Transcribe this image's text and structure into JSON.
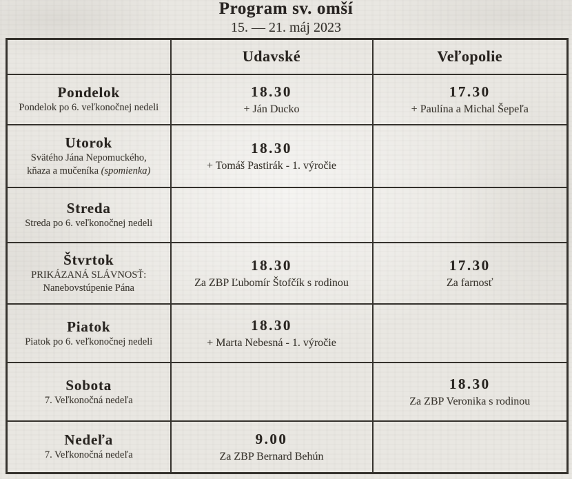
{
  "doc": {
    "title": "Program sv. omší",
    "subtitle": "15. — 21. máj 2023"
  },
  "table": {
    "col_udavske": "Udavské",
    "col_velopolie": "Veľopolie",
    "rows": [
      {
        "day": "Pondelok",
        "note1": "Pondelok po 6. veľkonočnej nedeli",
        "udavske": {
          "time": "18.30",
          "text": "+ Ján Ducko"
        },
        "velopolie": {
          "time": "17.30",
          "text": "+ Paulína a Michal Šepeľa"
        }
      },
      {
        "day": "Utorok",
        "note1": "Svätého Jána Nepomuckého,",
        "note2": "kňaza a mučeníka ",
        "note2_italic": "(spomienka)",
        "udavske": {
          "time": "18.30",
          "text": "+ Tomáš Pastirák - 1. výročie"
        }
      },
      {
        "day": "Streda",
        "note1": "Streda po 6. veľkonočnej nedeli"
      },
      {
        "day": "Štvrtok",
        "note1": "PRIKÁZANÁ SLÁVNOSŤ:",
        "note2": "Nanebovstúpenie Pána",
        "udavske": {
          "time": "18.30",
          "text": "Za ZBP Ľubomír Štofčík s rodinou"
        },
        "velopolie": {
          "time": "17.30",
          "text": "Za farnosť"
        }
      },
      {
        "day": "Piatok",
        "note1": "Piatok po 6. veľkonočnej nedeli",
        "udavske": {
          "time": "18.30",
          "text": "+ Marta Nebesná - 1. výročie"
        }
      },
      {
        "day": "Sobota",
        "note1": "7. Veľkonočná nedeľa",
        "velopolie": {
          "time": "18.30",
          "text": "Za ZBP Veronika s rodinou"
        }
      },
      {
        "day": "Nedeľa",
        "note1": "7. Veľkonočná nedeľa",
        "udavske": {
          "time": "9.00",
          "text": "Za ZBP Bernard Behún"
        }
      }
    ]
  },
  "colors": {
    "paper": "#e9e7e2",
    "ink": "#2f2b26",
    "border": "#35322d"
  }
}
